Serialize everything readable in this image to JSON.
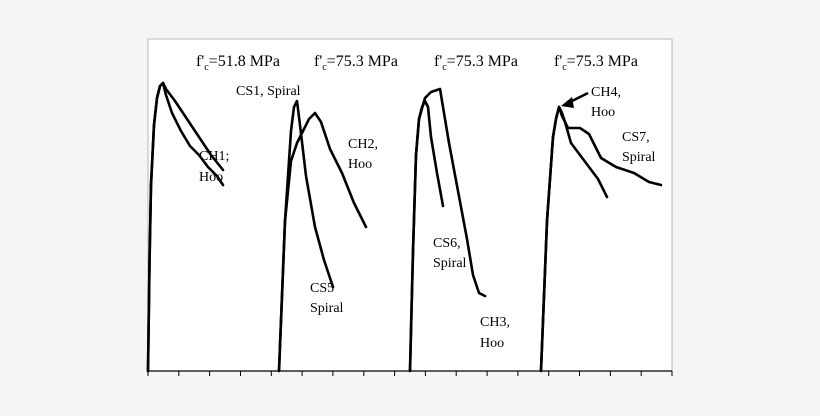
{
  "chart_data": {
    "type": "line",
    "grid": false,
    "legend": "none",
    "line_color": "#000000",
    "background": "#ffffff",
    "x_axis": {
      "tick_count": 18,
      "tick_labels": []
    },
    "y_axis": {
      "tick_labels": []
    },
    "groups": [
      {
        "header": {
          "prefix": "f'",
          "subscript": "c",
          "value": "=51.8 MPa"
        },
        "series": [
          {
            "name": "CS1, Spiral",
            "label_lines": [
              "CS1, Spiral"
            ],
            "points": [
              [
                0,
                0
              ],
              [
                1,
                0.36
              ],
              [
                2,
                0.62
              ],
              [
                4,
                0.82
              ],
              [
                6,
                0.91
              ],
              [
                8,
                0.95
              ],
              [
                10,
                0.96
              ],
              [
                12,
                0.94
              ],
              [
                18,
                0.9
              ],
              [
                26,
                0.84
              ],
              [
                34,
                0.78
              ],
              [
                42,
                0.72
              ],
              [
                50,
                0.67
              ]
            ]
          },
          {
            "name": "CH1; Hoo",
            "label_lines": [
              "CH1;",
              "Hoo"
            ],
            "points": [
              [
                0,
                0
              ],
              [
                1,
                0.36
              ],
              [
                2,
                0.62
              ],
              [
                4,
                0.82
              ],
              [
                6,
                0.91
              ],
              [
                8,
                0.95
              ],
              [
                10,
                0.96
              ],
              [
                12,
                0.92
              ],
              [
                16,
                0.86
              ],
              [
                22,
                0.8
              ],
              [
                28,
                0.75
              ],
              [
                34,
                0.72
              ],
              [
                40,
                0.68
              ],
              [
                46,
                0.65
              ],
              [
                50,
                0.62
              ]
            ]
          }
        ]
      },
      {
        "header": {
          "prefix": "f'",
          "subscript": "c",
          "value": "=75.3 MPa"
        },
        "series": [
          {
            "name": "CS5 Spiral",
            "label_lines": [
              "CS5",
              "Spiral"
            ],
            "points": [
              [
                0,
                0
              ],
              [
                4,
                0.5
              ],
              [
                8,
                0.8
              ],
              [
                10,
                0.88
              ],
              [
                12,
                0.9
              ],
              [
                14,
                0.82
              ],
              [
                18,
                0.65
              ],
              [
                24,
                0.48
              ],
              [
                30,
                0.37
              ],
              [
                36,
                0.28
              ]
            ]
          },
          {
            "name": "CH2, Hoo",
            "label_lines": [
              "CH2,",
              "Hoo"
            ],
            "points": [
              [
                0,
                0
              ],
              [
                4,
                0.5
              ],
              [
                8,
                0.7
              ],
              [
                12,
                0.76
              ],
              [
                16,
                0.8
              ],
              [
                20,
                0.84
              ],
              [
                24,
                0.86
              ],
              [
                28,
                0.83
              ],
              [
                34,
                0.74
              ],
              [
                42,
                0.66
              ],
              [
                50,
                0.56
              ],
              [
                58,
                0.48
              ]
            ]
          }
        ]
      },
      {
        "header": {
          "prefix": "f'",
          "subscript": "c",
          "value": "=75.3 MPa"
        },
        "series": [
          {
            "name": "CS6, Spiral",
            "label_lines": [
              "CS6,",
              "Spiral"
            ],
            "points": [
              [
                0,
                0
              ],
              [
                2,
                0.4
              ],
              [
                4,
                0.72
              ],
              [
                6,
                0.84
              ],
              [
                8,
                0.88
              ],
              [
                10,
                0.9
              ],
              [
                12,
                0.88
              ],
              [
                14,
                0.78
              ],
              [
                18,
                0.66
              ],
              [
                22,
                0.55
              ]
            ]
          },
          {
            "name": "CH3, Hoo",
            "label_lines": [
              "CH3,",
              "Hoo"
            ],
            "points": [
              [
                0,
                0
              ],
              [
                2,
                0.4
              ],
              [
                4,
                0.72
              ],
              [
                6,
                0.84
              ],
              [
                10,
                0.91
              ],
              [
                14,
                0.93
              ],
              [
                20,
                0.94
              ],
              [
                22,
                0.88
              ],
              [
                26,
                0.76
              ],
              [
                32,
                0.6
              ],
              [
                38,
                0.44
              ],
              [
                42,
                0.32
              ],
              [
                46,
                0.26
              ],
              [
                50,
                0.25
              ]
            ]
          }
        ]
      },
      {
        "header": {
          "prefix": "f'",
          "subscript": "c",
          "value": "=75.3 MPa"
        },
        "series": [
          {
            "name": "CH4, Hoo",
            "label_lines": [
              "CH4,",
              "Hoo"
            ],
            "points": [
              [
                0,
                0
              ],
              [
                4,
                0.5
              ],
              [
                8,
                0.78
              ],
              [
                10,
                0.84
              ],
              [
                12,
                0.88
              ],
              [
                14,
                0.86
              ],
              [
                16,
                0.83
              ],
              [
                20,
                0.76
              ],
              [
                26,
                0.72
              ],
              [
                32,
                0.68
              ],
              [
                38,
                0.64
              ],
              [
                44,
                0.58
              ]
            ]
          },
          {
            "name": "CS7, Spiral",
            "label_lines": [
              "CS7,",
              "Spiral"
            ],
            "points": [
              [
                0,
                0
              ],
              [
                4,
                0.5
              ],
              [
                8,
                0.78
              ],
              [
                10,
                0.84
              ],
              [
                12,
                0.88
              ],
              [
                14,
                0.85
              ],
              [
                18,
                0.81
              ],
              [
                26,
                0.81
              ],
              [
                32,
                0.79
              ],
              [
                40,
                0.71
              ],
              [
                50,
                0.68
              ],
              [
                62,
                0.66
              ],
              [
                72,
                0.63
              ],
              [
                80,
                0.62
              ]
            ]
          }
        ]
      }
    ]
  }
}
